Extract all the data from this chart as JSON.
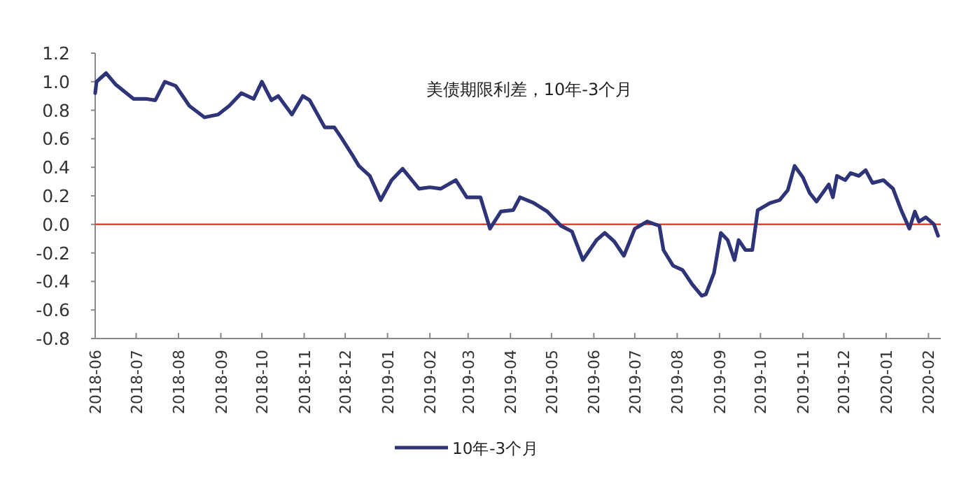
{
  "chart_data": {
    "type": "line",
    "title": "美债期限利差，10年-3个月",
    "x": [
      "2018-06-01",
      "2018-06-02",
      "2018-06-09",
      "2018-06-16",
      "2018-06-29",
      "2018-07-08",
      "2018-07-15",
      "2018-07-22",
      "2018-07-30",
      "2018-08-09",
      "2018-08-20",
      "2018-08-30",
      "2018-09-07",
      "2018-09-16",
      "2018-09-25",
      "2018-10-01",
      "2018-10-08",
      "2018-10-13",
      "2018-10-23",
      "2018-10-31",
      "2018-11-05",
      "2018-11-16",
      "2018-11-23",
      "2018-11-28",
      "2018-12-06",
      "2018-12-11",
      "2018-12-19",
      "2018-12-27",
      "2019-01-04",
      "2019-01-12",
      "2019-01-24",
      "2019-02-01",
      "2019-02-09",
      "2019-02-20",
      "2019-02-28",
      "2019-03-10",
      "2019-03-17",
      "2019-03-25",
      "2019-04-03",
      "2019-04-08",
      "2019-04-18",
      "2019-04-28",
      "2019-05-08",
      "2019-05-16",
      "2019-05-24",
      "2019-06-03",
      "2019-06-09",
      "2019-06-16",
      "2019-06-23",
      "2019-07-01",
      "2019-07-10",
      "2019-07-19",
      "2019-07-22",
      "2019-07-29",
      "2019-08-05",
      "2019-08-12",
      "2019-08-19",
      "2019-08-22",
      "2019-08-28",
      "2019-09-02",
      "2019-09-07",
      "2019-09-12",
      "2019-09-15",
      "2019-09-20",
      "2019-09-25",
      "2019-09-29",
      "2019-10-08",
      "2019-10-15",
      "2019-10-21",
      "2019-10-26",
      "2019-11-01",
      "2019-11-06",
      "2019-11-11",
      "2019-11-20",
      "2019-11-23",
      "2019-11-26",
      "2019-12-02",
      "2019-12-06",
      "2019-12-12",
      "2019-12-17",
      "2019-12-22",
      "2019-12-30",
      "2020-01-06",
      "2020-01-12",
      "2020-01-18",
      "2020-01-22",
      "2020-01-25",
      "2020-01-30",
      "2020-02-05",
      "2020-02-08"
    ],
    "series": [
      {
        "name": "10年-3个月",
        "color": "#2e3477",
        "values": [
          0.92,
          1.0,
          1.06,
          0.98,
          0.88,
          0.88,
          0.87,
          1.0,
          0.97,
          0.83,
          0.75,
          0.77,
          0.83,
          0.92,
          0.88,
          1.0,
          0.87,
          0.9,
          0.77,
          0.9,
          0.87,
          0.68,
          0.68,
          0.61,
          0.49,
          0.41,
          0.34,
          0.17,
          0.31,
          0.39,
          0.25,
          0.26,
          0.25,
          0.31,
          0.19,
          0.19,
          -0.03,
          0.09,
          0.1,
          0.19,
          0.15,
          0.09,
          -0.01,
          -0.05,
          -0.25,
          -0.11,
          -0.06,
          -0.12,
          -0.22,
          -0.03,
          0.02,
          -0.01,
          -0.18,
          -0.29,
          -0.32,
          -0.42,
          -0.5,
          -0.49,
          -0.34,
          -0.06,
          -0.11,
          -0.25,
          -0.11,
          -0.18,
          -0.18,
          0.1,
          0.15,
          0.17,
          0.24,
          0.41,
          0.33,
          0.22,
          0.16,
          0.28,
          0.19,
          0.34,
          0.31,
          0.36,
          0.34,
          0.38,
          0.29,
          0.31,
          0.25,
          0.1,
          -0.03,
          0.09,
          0.02,
          0.05,
          0.0,
          -0.08
        ]
      }
    ],
    "xlim": [
      "2018-06-01",
      "2020-02-10"
    ],
    "xticks": [
      "2018-06",
      "2018-07",
      "2018-08",
      "2018-09",
      "2018-10",
      "2018-11",
      "2018-12",
      "2019-01",
      "2019-02",
      "2019-03",
      "2019-04",
      "2019-05",
      "2019-06",
      "2019-07",
      "2019-08",
      "2019-09",
      "2019-10",
      "2019-11",
      "2019-12",
      "2020-01",
      "2020-02"
    ],
    "ylim": [
      -0.8,
      1.2
    ],
    "yticks": [
      {
        "value": -0.8,
        "label": "-0.8"
      },
      {
        "value": -0.6,
        "label": "-0.6"
      },
      {
        "value": -0.4,
        "label": "-0.4"
      },
      {
        "value": -0.2,
        "label": "-0.2"
      },
      {
        "value": 0,
        "label": "0.0"
      },
      0.2,
      0.4,
      0.6,
      0.8,
      {
        "value": 1,
        "label": "1.0"
      },
      1.2
    ],
    "ref_lines": [
      {
        "axis": "y",
        "value": 0,
        "color": "#e8413c"
      }
    ],
    "grid": false,
    "legend": "bottom",
    "marker": "none",
    "line_style": "solid"
  }
}
